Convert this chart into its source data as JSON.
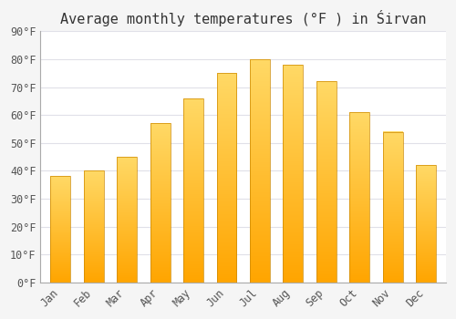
{
  "title": "Average monthly temperatures (°F ) in Śirvan",
  "months": [
    "Jan",
    "Feb",
    "Mar",
    "Apr",
    "May",
    "Jun",
    "Jul",
    "Aug",
    "Sep",
    "Oct",
    "Nov",
    "Dec"
  ],
  "values": [
    38,
    40,
    45,
    57,
    66,
    75,
    80,
    78,
    72,
    61,
    54,
    42
  ],
  "bar_color_bottom": "#FFA500",
  "bar_color_top": "#FFD966",
  "bar_border_color": "#CC8800",
  "ylim": [
    0,
    90
  ],
  "yticks": [
    0,
    10,
    20,
    30,
    40,
    50,
    60,
    70,
    80,
    90
  ],
  "ytick_labels": [
    "0°F",
    "10°F",
    "20°F",
    "30°F",
    "40°F",
    "50°F",
    "60°F",
    "70°F",
    "80°F",
    "90°F"
  ],
  "background_color": "#f5f5f5",
  "plot_bg_color": "#ffffff",
  "grid_color": "#e0e0e8",
  "title_fontsize": 11,
  "tick_fontsize": 8.5,
  "bar_width": 0.6
}
